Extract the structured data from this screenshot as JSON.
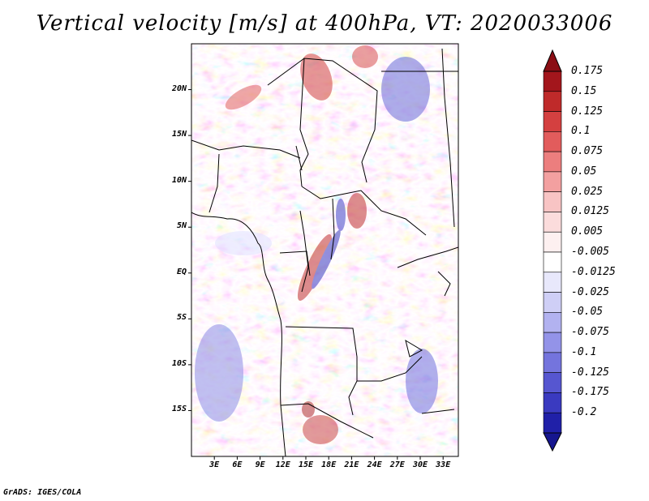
{
  "title": "Vertical velocity [m/s] at 400hPa, VT: 2020033006",
  "credit": "GrADS: IGES/COLA",
  "map": {
    "lat_range": [
      -20,
      25
    ],
    "lon_range": [
      0,
      35
    ],
    "lat_ticks": [
      {
        "value": 20,
        "label": "20N"
      },
      {
        "value": 15,
        "label": "15N"
      },
      {
        "value": 10,
        "label": "10N"
      },
      {
        "value": 5,
        "label": "5N"
      },
      {
        "value": 0,
        "label": "EQ"
      },
      {
        "value": -5,
        "label": "5S"
      },
      {
        "value": -10,
        "label": "10S"
      },
      {
        "value": -15,
        "label": "15S"
      }
    ],
    "lon_ticks": [
      {
        "value": 3,
        "label": "3E"
      },
      {
        "value": 6,
        "label": "6E"
      },
      {
        "value": 9,
        "label": "9E"
      },
      {
        "value": 12,
        "label": "12E"
      },
      {
        "value": 15,
        "label": "15E"
      },
      {
        "value": 18,
        "label": "18E"
      },
      {
        "value": 21,
        "label": "21E"
      },
      {
        "value": 24,
        "label": "24E"
      },
      {
        "value": 27,
        "label": "27E"
      },
      {
        "value": 30,
        "label": "30E"
      },
      {
        "value": 33,
        "label": "33E"
      }
    ]
  },
  "colorbar": {
    "levels": [
      {
        "label": "0.175",
        "color": "#a3161c"
      },
      {
        "label": "0.15",
        "color": "#bf2a2a"
      },
      {
        "label": "0.125",
        "color": "#d44040"
      },
      {
        "label": "0.1",
        "color": "#e25c5c"
      },
      {
        "label": "0.075",
        "color": "#ec7e7e"
      },
      {
        "label": "0.05",
        "color": "#f3a0a0"
      },
      {
        "label": "0.025",
        "color": "#f8c4c4"
      },
      {
        "label": "0.0125",
        "color": "#fbdcdc"
      },
      {
        "label": "0.005",
        "color": "#fdf0f0"
      },
      {
        "label": "-0.005",
        "color": "#ffffff"
      },
      {
        "label": "-0.0125",
        "color": "#e8e8fb"
      },
      {
        "label": "-0.025",
        "color": "#cfcff6"
      },
      {
        "label": "-0.05",
        "color": "#b2b2f0"
      },
      {
        "label": "-0.075",
        "color": "#9393e8"
      },
      {
        "label": "-0.1",
        "color": "#7474dd"
      },
      {
        "label": "-0.125",
        "color": "#5656d0"
      },
      {
        "label": "-0.175",
        "color": "#3a3ac0"
      },
      {
        "label": "-0.2",
        "color": "#2020a8"
      }
    ],
    "top_arrow_color": "#8b0e14",
    "bottom_arrow_color": "#16168f"
  }
}
